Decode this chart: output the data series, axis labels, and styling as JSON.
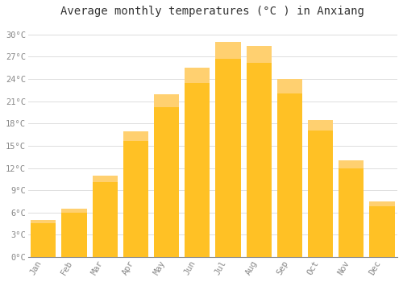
{
  "title": "Average monthly temperatures (°C ) in Anxiang",
  "months": [
    "Jan",
    "Feb",
    "Mar",
    "Apr",
    "May",
    "Jun",
    "Jul",
    "Aug",
    "Sep",
    "Oct",
    "Nov",
    "Dec"
  ],
  "values": [
    5.0,
    6.5,
    11.0,
    17.0,
    22.0,
    25.5,
    29.0,
    28.5,
    24.0,
    18.5,
    13.0,
    7.5
  ],
  "bar_color": "#FFC125",
  "bar_edge_color": "#FFD070",
  "background_color": "#FFFFFF",
  "grid_color": "#DDDDDD",
  "yticks": [
    0,
    3,
    6,
    9,
    12,
    15,
    18,
    21,
    24,
    27,
    30
  ],
  "ytick_labels": [
    "0°C",
    "3°C",
    "6°C",
    "9°C",
    "12°C",
    "15°C",
    "18°C",
    "21°C",
    "24°C",
    "27°C",
    "30°C"
  ],
  "ylim": [
    0,
    31.5
  ],
  "title_fontsize": 10,
  "tick_fontsize": 7.5,
  "font_family": "monospace",
  "tick_color": "#888888",
  "bar_width": 0.82
}
